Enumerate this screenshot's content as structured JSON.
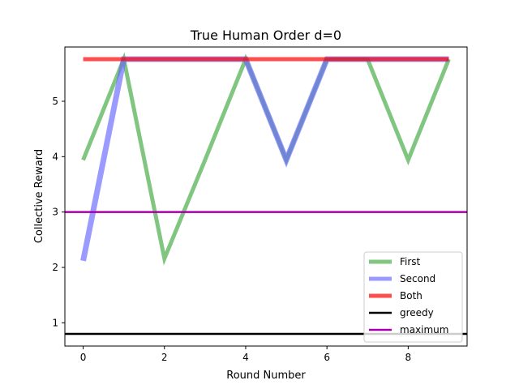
{
  "chart_data": {
    "type": "line",
    "title": "True Human Order d=0",
    "xlabel": "Round Number",
    "ylabel": "Collective Reward",
    "xlim": [
      -0.45,
      9.45
    ],
    "ylim": [
      0.58,
      5.98
    ],
    "xticks": [
      0,
      2,
      4,
      6,
      8
    ],
    "yticks": [
      1,
      2,
      3,
      4,
      5
    ],
    "grid": false,
    "legend_position": "lower-right",
    "x": [
      0,
      1,
      2,
      3,
      4,
      5,
      6,
      7,
      8,
      9
    ],
    "series": [
      {
        "name": "First",
        "color": "#2ca02c",
        "opacity": 0.6,
        "values": [
          3.94,
          5.76,
          2.16,
          3.94,
          5.76,
          3.94,
          5.76,
          5.76,
          3.94,
          5.76
        ]
      },
      {
        "name": "Second",
        "color": "#6666ff",
        "opacity": 0.65,
        "values": [
          2.12,
          5.76,
          5.76,
          5.76,
          5.76,
          3.94,
          5.76,
          5.76,
          5.76,
          5.76
        ]
      },
      {
        "name": "Both",
        "color": "#ff0000",
        "opacity": 0.7,
        "values": [
          5.76,
          5.76,
          5.76,
          5.76,
          5.76,
          5.76,
          5.76,
          5.76,
          5.76,
          5.76
        ]
      }
    ],
    "reference_lines": [
      {
        "name": "greedy",
        "color": "#000000",
        "value": 0.8
      },
      {
        "name": "maximum",
        "color": "#aa00aa",
        "value": 3.0
      }
    ]
  }
}
